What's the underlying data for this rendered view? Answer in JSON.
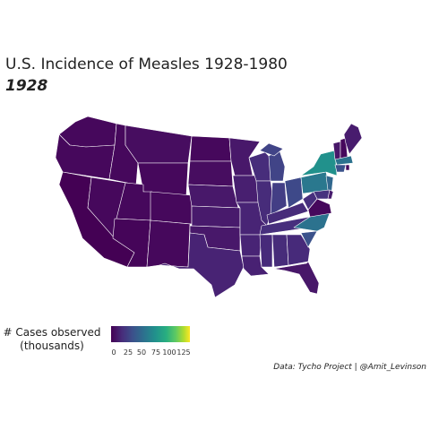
{
  "title": "U.S. Incidence of Measles 1928-1980",
  "subtitle": "1928",
  "legend": {
    "title_line1": "# Cases observed",
    "title_line2": "(thousands)",
    "ticks": [
      "0",
      "25",
      "50",
      "75",
      "100",
      "125"
    ],
    "range": [
      0,
      130
    ]
  },
  "caption": "Data: Tycho Project | @Amit_Levinson",
  "colors": {
    "low": "#440154",
    "mid": "#3b528b",
    "teal": "#21918c",
    "high": "#fde725"
  }
}
